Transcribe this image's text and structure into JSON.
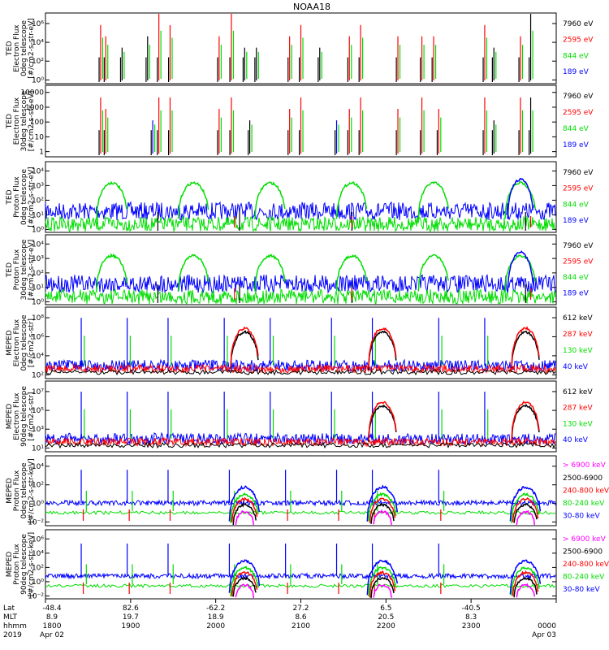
{
  "title": "NOAA18",
  "colors": {
    "black": "#000000",
    "blue": "#0000ff",
    "green": "#00dd00",
    "red": "#ff0000",
    "magenta": "#ff00ff"
  },
  "chart_data": [
    {
      "type": "line",
      "ylabel": [
        "TED",
        "Electron Flux",
        "0deg telescope",
        "[#/cm2-s-str-eV]"
      ],
      "yticks": [
        "10⁰",
        "10²",
        "10⁴",
        "10⁶"
      ],
      "yminor": [
        "10¹",
        "10³",
        "10⁵"
      ],
      "log_range": [
        0,
        6
      ],
      "legend": [
        {
          "label": "7960 eV",
          "color": "black"
        },
        {
          "label": "2595 eV",
          "color": "red"
        },
        {
          "label": "844 eV",
          "color": "green"
        },
        {
          "label": "189 eV",
          "color": "blue"
        }
      ],
      "style": "bursts",
      "events": [
        [
          0.108,
          3,
          "red"
        ],
        [
          0.118,
          2,
          "red"
        ],
        [
          0.15,
          1,
          "black"
        ],
        [
          0.2,
          2,
          "black"
        ],
        [
          0.222,
          4,
          "red"
        ],
        [
          0.244,
          3,
          "red"
        ],
        [
          0.34,
          2,
          "red"
        ],
        [
          0.364,
          4,
          "red"
        ],
        [
          0.39,
          1,
          "black"
        ],
        [
          0.413,
          1,
          "black"
        ],
        [
          0.478,
          2,
          "red"
        ],
        [
          0.5,
          3,
          "red"
        ],
        [
          0.537,
          1,
          "black"
        ],
        [
          0.595,
          2,
          "red"
        ],
        [
          0.617,
          3,
          "red"
        ],
        [
          0.69,
          2,
          "red"
        ],
        [
          0.737,
          2,
          "red"
        ],
        [
          0.76,
          2,
          "red"
        ],
        [
          0.86,
          3,
          "red"
        ],
        [
          0.878,
          1,
          "black"
        ],
        [
          0.93,
          2,
          "red"
        ],
        [
          0.95,
          4,
          "black"
        ]
      ]
    },
    {
      "type": "line",
      "ylabel": [
        "TED",
        "Electron Flux",
        "30deg telescope",
        "[#/cm2-s-str-eV]"
      ],
      "yticks": [
        "1",
        "10",
        "100",
        "1000",
        "10000"
      ],
      "log_range": [
        0,
        4
      ],
      "legend": [
        {
          "label": "7960 eV",
          "color": "black"
        },
        {
          "label": "2595 eV",
          "color": "red"
        },
        {
          "label": "844 eV",
          "color": "green"
        },
        {
          "label": "189 eV",
          "color": "blue"
        }
      ],
      "style": "bursts",
      "events": [
        [
          0.108,
          3,
          "red"
        ],
        [
          0.118,
          2,
          "red"
        ],
        [
          0.21,
          1,
          "blue"
        ],
        [
          0.222,
          3,
          "red"
        ],
        [
          0.244,
          3,
          "red"
        ],
        [
          0.34,
          2,
          "red"
        ],
        [
          0.364,
          3,
          "red"
        ],
        [
          0.4,
          1,
          "black"
        ],
        [
          0.478,
          2,
          "red"
        ],
        [
          0.5,
          3,
          "red"
        ],
        [
          0.57,
          1,
          "blue"
        ],
        [
          0.595,
          2,
          "red"
        ],
        [
          0.617,
          3,
          "red"
        ],
        [
          0.69,
          2,
          "red"
        ],
        [
          0.737,
          3,
          "red"
        ],
        [
          0.77,
          2,
          "red"
        ],
        [
          0.86,
          3,
          "red"
        ],
        [
          0.878,
          1,
          "black"
        ],
        [
          0.93,
          3,
          "red"
        ],
        [
          0.95,
          3,
          "black"
        ]
      ]
    },
    {
      "type": "line",
      "ylabel": [
        "TED",
        "Proton Flux",
        "0deg telescope",
        "[#/cm2-s-str-eV]"
      ],
      "yticks": [
        "10⁰",
        "10¹",
        "10²",
        "10³",
        "10⁴"
      ],
      "log_range": [
        0,
        4
      ],
      "legend": [
        {
          "label": "7960 eV",
          "color": "black"
        },
        {
          "label": "2595 eV",
          "color": "red"
        },
        {
          "label": "844 eV",
          "color": "green"
        },
        {
          "label": "189 eV",
          "color": "blue"
        }
      ],
      "style": "proton"
    },
    {
      "type": "line",
      "ylabel": [
        "TED",
        "Proton Flux",
        "30deg telescope",
        "[#/cm2-s-str-eV]"
      ],
      "yticks": [
        "10⁰",
        "10¹",
        "10²",
        "10³",
        "10⁴"
      ],
      "log_range": [
        0,
        4
      ],
      "legend": [
        {
          "label": "7960 eV",
          "color": "black"
        },
        {
          "label": "2595 eV",
          "color": "red"
        },
        {
          "label": "844 eV",
          "color": "green"
        },
        {
          "label": "189 eV",
          "color": "blue"
        }
      ],
      "style": "proton"
    },
    {
      "type": "line",
      "ylabel": [
        "MEPED",
        "Electron Flux",
        "0deg telescope",
        "[#/cm2-s-str]"
      ],
      "yticks": [
        "10²",
        "10⁴",
        "10⁶",
        "10⁸"
      ],
      "log_range": [
        1,
        9
      ],
      "legend": [
        {
          "label": "612 keV",
          "color": "black"
        },
        {
          "label": "287 keV",
          "color": "red"
        },
        {
          "label": "130 keV",
          "color": "green"
        },
        {
          "label": "40 keV",
          "color": "blue"
        }
      ],
      "style": "meped_e"
    },
    {
      "type": "line",
      "ylabel": [
        "MEPED",
        "Electron Flux",
        "90deg telescope",
        "[#/cm2-s-str]"
      ],
      "yticks": [
        "10¹",
        "10³",
        "10⁵",
        "10⁷"
      ],
      "log_range": [
        1,
        7
      ],
      "legend": [
        {
          "label": "612 keV",
          "color": "black"
        },
        {
          "label": "287 keV",
          "color": "red"
        },
        {
          "label": "130 keV",
          "color": "green"
        },
        {
          "label": "40 keV",
          "color": "blue"
        }
      ],
      "style": "meped_e90"
    },
    {
      "type": "line",
      "ylabel": [
        "MEPED",
        "Proton Flux",
        "0deg telescope",
        "[#/cm2-s-str-keV]"
      ],
      "yticks": [
        "10⁻²",
        "10⁰",
        "10²",
        "10⁴"
      ],
      "log_range": [
        -3,
        6
      ],
      "legend": [
        {
          "label": "> 6900 keV",
          "color": "magenta"
        },
        {
          "label": "2500-6900",
          "color": "black"
        },
        {
          "label": "240-800 keV",
          "color": "red"
        },
        {
          "label": "80-240 keV",
          "color": "green"
        },
        {
          "label": "30-80 keV",
          "color": "blue"
        }
      ],
      "style": "meped_p"
    },
    {
      "type": "line",
      "ylabel": [
        "MEPED",
        "Proton Flux",
        "90deg telescope",
        "[#/cm2-s-str-keV]"
      ],
      "yticks": [
        "10⁻²",
        "10⁰",
        "10²",
        "10⁴",
        "10⁶"
      ],
      "log_range": [
        -3,
        6
      ],
      "legend": [
        {
          "label": "> 6900 keV",
          "color": "magenta"
        },
        {
          "label": "2500-6900",
          "color": "black"
        },
        {
          "label": "240-800 keV",
          "color": "red"
        },
        {
          "label": "80-240 keV",
          "color": "green"
        },
        {
          "label": "30-80 keV",
          "color": "blue"
        }
      ],
      "style": "meped_p90"
    }
  ],
  "x_axis": {
    "row_labels": [
      "Lat",
      "MLT",
      "hhmm",
      "2019"
    ],
    "ticks": [
      {
        "f": 0.0,
        "lat": "-48.4",
        "mlt": "8.9",
        "hhmm": "1800",
        "date": "Apr 02"
      },
      {
        "f": 0.1667,
        "lat": "82.6",
        "mlt": "19.7",
        "hhmm": "1900",
        "date": ""
      },
      {
        "f": 0.3333,
        "lat": "-62.2",
        "mlt": "18.9",
        "hhmm": "2000",
        "date": ""
      },
      {
        "f": 0.5,
        "lat": "27.2",
        "mlt": "8.6",
        "hhmm": "2100",
        "date": ""
      },
      {
        "f": 0.6667,
        "lat": "6.5",
        "mlt": "20.5",
        "hhmm": "2200",
        "date": ""
      },
      {
        "f": 0.8333,
        "lat": "-40.5",
        "mlt": "8.3",
        "hhmm": "2300",
        "date": ""
      },
      {
        "f": 1.0,
        "lat": "",
        "mlt": "",
        "hhmm": "0000",
        "date": "Apr 03"
      }
    ]
  }
}
